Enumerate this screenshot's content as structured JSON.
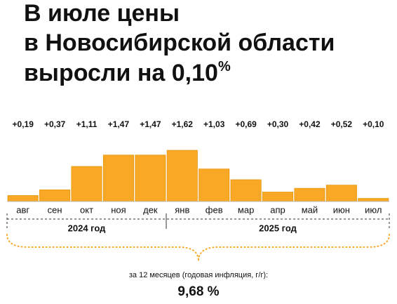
{
  "chart_data": {
    "type": "bar",
    "title": [
      "В июле цены",
      "в Новосибирской области",
      "выросли на 0,10"
    ],
    "title_unit": "%",
    "categories": [
      "авг",
      "сен",
      "окт",
      "ноя",
      "дек",
      "янв",
      "фев",
      "мар",
      "апр",
      "май",
      "июн",
      "июл"
    ],
    "values": [
      0.19,
      0.37,
      1.11,
      1.47,
      1.47,
      1.62,
      1.03,
      0.69,
      0.3,
      0.42,
      0.52,
      0.1
    ],
    "value_labels": [
      "+0,19",
      "+0,37",
      "+1,11",
      "+1,47",
      "+1,47",
      "+1,62",
      "+1,03",
      "+0,69",
      "+0,30",
      "+0,42",
      "+0,52",
      "+0,10"
    ],
    "color": "#f9a825",
    "groups": [
      "2024 год",
      "2025 год"
    ],
    "annual_label": "за 12 месяцев (годовая инфляция, г/г):",
    "annual_value_label": "9,68 %"
  }
}
